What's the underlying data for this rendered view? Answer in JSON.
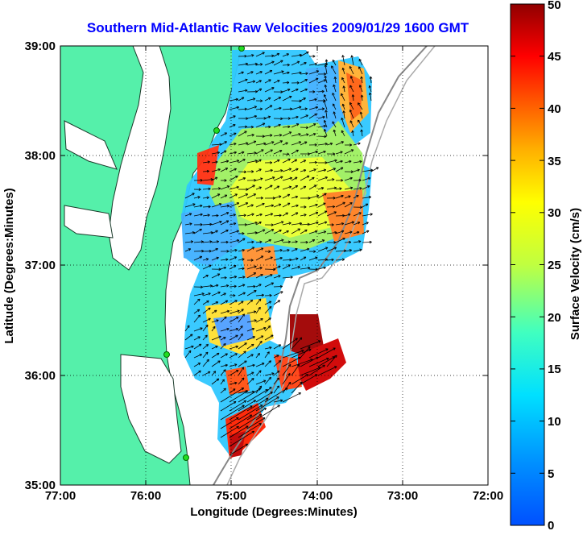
{
  "title": "Southern Mid-Atlantic Raw Velocities 2009/01/29 1600 GMT",
  "xlabel": "Longitude (Degrees:Minutes)",
  "ylabel": "Latitude (Degrees:Minutes)",
  "x_ticks": [
    "77:00",
    "76:00",
    "75:00",
    "74:00",
    "73:00",
    "72:00"
  ],
  "y_ticks": [
    "39:00",
    "38:00",
    "37:00",
    "36:00",
    "35:00"
  ],
  "colorbar": {
    "label": "Surface Velocity (cm/s)",
    "ticks": [
      "0",
      "5",
      "10",
      "15",
      "20",
      "25",
      "30",
      "35",
      "40",
      "45",
      "50"
    ]
  },
  "colors": {
    "land": "#55f0aa",
    "title": "#0000ff",
    "arrows": "#000000"
  },
  "chart_data": {
    "type": "heatmap",
    "title": "Southern Mid-Atlantic Raw Velocities 2009/01/29 1600 GMT",
    "xlabel": "Longitude (Degrees:Minutes)",
    "ylabel": "Latitude (Degrees:Minutes)",
    "xlim": [
      -77,
      -72
    ],
    "ylim": [
      35,
      39
    ],
    "grid": true,
    "colorbar_range": [
      0,
      50
    ],
    "colorbar_label": "Surface Velocity (cm/s)"
  }
}
